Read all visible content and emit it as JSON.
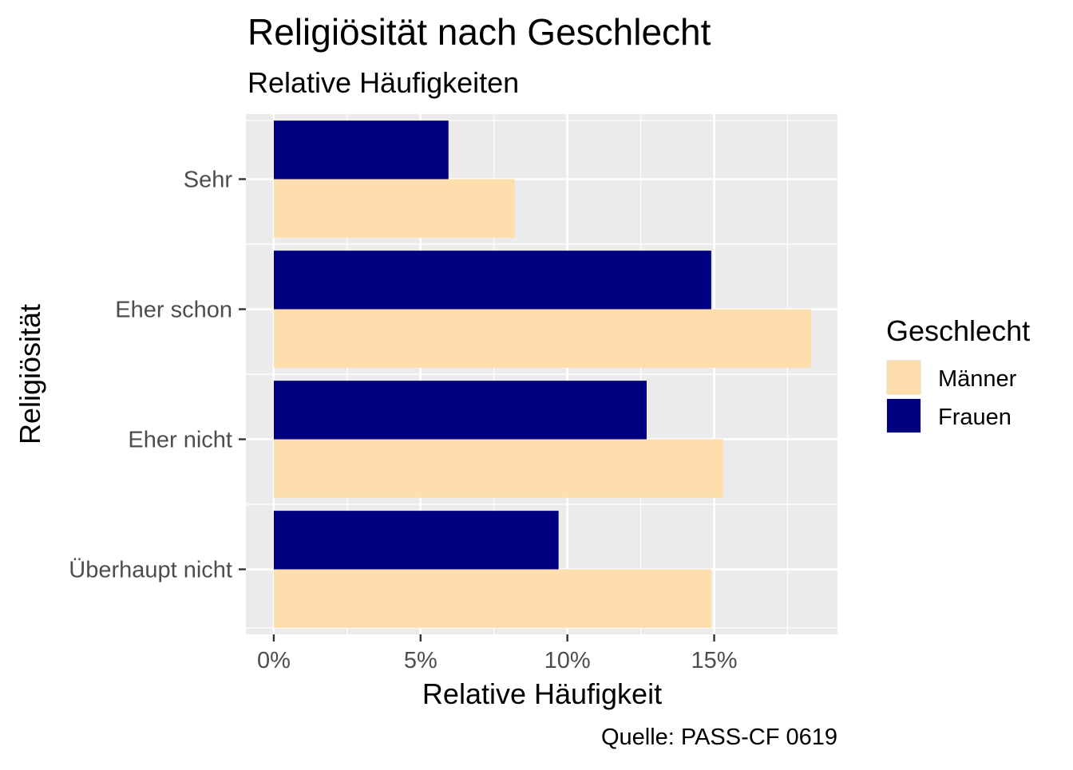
{
  "chart_data": {
    "type": "bar",
    "orientation": "horizontal",
    "title": "Religiösität nach Geschlecht",
    "subtitle": "Relative Häufigkeiten",
    "xlabel": "Relative Häufigkeit",
    "ylabel": "Religiösität",
    "caption": "Quelle: PASS-CF 0619",
    "categories": [
      "Sehr",
      "Eher schon",
      "Eher nicht",
      "Überhaupt nicht"
    ],
    "xlim": [
      -0.95,
      19.2
    ],
    "x_ticks": [
      0,
      5,
      10,
      15
    ],
    "x_tick_labels": [
      "0%",
      "5%",
      "10%",
      "15%"
    ],
    "grid": true,
    "legend": {
      "title": "Geschlecht",
      "position": "right"
    },
    "series": [
      {
        "name": "Männer",
        "color": "#FFDEAD",
        "values": [
          8.2,
          18.3,
          15.3,
          14.9
        ]
      },
      {
        "name": "Frauen",
        "color": "#000080",
        "values": [
          5.95,
          14.9,
          12.7,
          9.7
        ]
      }
    ],
    "panel_background": "#EBEBEB",
    "gridline_color": "#FFFFFF"
  }
}
